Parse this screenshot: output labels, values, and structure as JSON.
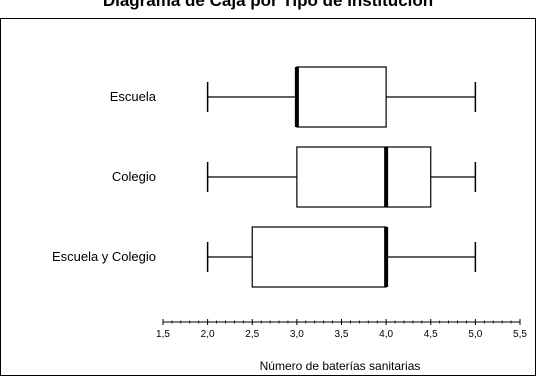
{
  "chart_data": {
    "type": "boxplot",
    "title": "Diagrama de Caja por Tipo de Institución",
    "xlabel": "Número de baterías sanitarias",
    "ylabel": "",
    "xlim": [
      1.5,
      5.5
    ],
    "x_ticks": [
      1.5,
      2.0,
      2.5,
      3.0,
      3.5,
      4.0,
      4.5,
      5.0,
      5.5
    ],
    "x_tick_labels": [
      "1,5",
      "2,0",
      "2,5",
      "3,0",
      "3,5",
      "4,0",
      "4,5",
      "5,0",
      "5,5"
    ],
    "grid": false,
    "legend": "none",
    "categories": [
      "Escuela",
      "Colegio",
      "Escuela y Colegio"
    ],
    "boxes": [
      {
        "category": "Escuela",
        "min": 2.0,
        "q1": 3.0,
        "median": 3.0,
        "q3": 4.0,
        "max": 5.0
      },
      {
        "category": "Colegio",
        "min": 2.0,
        "q1": 3.0,
        "median": 4.0,
        "q3": 4.5,
        "max": 5.0
      },
      {
        "category": "Escuela y Colegio",
        "min": 2.0,
        "q1": 2.5,
        "median": 4.0,
        "q3": 4.0,
        "max": 5.0
      }
    ],
    "colors": {
      "box_fill": "#ffffff",
      "stroke": "#000000"
    }
  }
}
